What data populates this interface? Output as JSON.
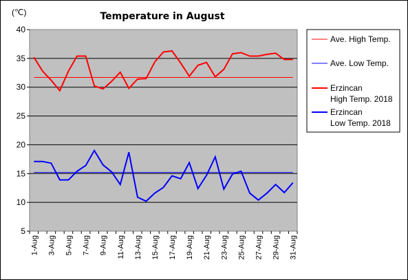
{
  "chart_data": {
    "type": "line",
    "title": "Temperature in August",
    "unit_label": "(℃)",
    "ylim": [
      5,
      40
    ],
    "y_ticks": [
      "5",
      "10",
      "15",
      "20",
      "25",
      "30",
      "35",
      "40"
    ],
    "y_tick_values": [
      5,
      10,
      15,
      20,
      25,
      30,
      35,
      40
    ],
    "grid": true,
    "legend_placement": "right",
    "x": [
      "1-Aug",
      "2-Aug",
      "3-Aug",
      "4-Aug",
      "5-Aug",
      "6-Aug",
      "7-Aug",
      "8-Aug",
      "9-Aug",
      "10-Aug",
      "11-Aug",
      "12-Aug",
      "13-Aug",
      "14-Aug",
      "15-Aug",
      "16-Aug",
      "17-Aug",
      "18-Aug",
      "19-Aug",
      "20-Aug",
      "21-Aug",
      "22-Aug",
      "23-Aug",
      "24-Aug",
      "25-Aug",
      "26-Aug",
      "27-Aug",
      "28-Aug",
      "29-Aug",
      "30-Aug",
      "31-Aug"
    ],
    "x_tick_labels": [
      "1-Aug",
      "3-Aug",
      "5-Aug",
      "7-Aug",
      "9-Aug",
      "11-Aug",
      "13-Aug",
      "15-Aug",
      "17-Aug",
      "19-Aug",
      "21-Aug",
      "23-Aug",
      "25-Aug",
      "27-Aug",
      "29-Aug",
      "31-Aug"
    ],
    "series": [
      {
        "name": "Ave. High Temp.",
        "color": "#ff0000",
        "width": 1,
        "values": [
          31.7,
          31.7,
          31.7,
          31.7,
          31.7,
          31.7,
          31.7,
          31.7,
          31.7,
          31.7,
          31.7,
          31.7,
          31.7,
          31.7,
          31.7,
          31.7,
          31.7,
          31.7,
          31.7,
          31.7,
          31.7,
          31.7,
          31.7,
          31.7,
          31.7,
          31.7,
          31.7,
          31.7,
          31.7,
          31.7,
          31.7
        ]
      },
      {
        "name": "Ave. Low Temp.",
        "color": "#0000ff",
        "width": 1,
        "values": [
          15.2,
          15.2,
          15.2,
          15.2,
          15.2,
          15.2,
          15.2,
          15.2,
          15.2,
          15.2,
          15.2,
          15.2,
          15.2,
          15.2,
          15.2,
          15.2,
          15.2,
          15.2,
          15.2,
          15.2,
          15.2,
          15.2,
          15.2,
          15.2,
          15.2,
          15.2,
          15.2,
          15.2,
          15.2,
          15.2,
          15.2
        ]
      },
      {
        "name": "Erzincan High Temp. 2018",
        "legend_lines": [
          "Erzincan",
          "High Temp. 2018"
        ],
        "color": "#ff0000",
        "width": 2,
        "values": [
          35.2,
          32.8,
          31.2,
          29.4,
          32.8,
          35.4,
          35.4,
          30.2,
          29.7,
          31.0,
          32.6,
          29.8,
          31.4,
          31.5,
          34.4,
          36.1,
          36.3,
          34.2,
          31.9,
          33.8,
          34.3,
          31.8,
          33.1,
          35.8,
          36.0,
          35.4,
          35.4,
          35.7,
          35.9,
          34.8,
          34.8
        ]
      },
      {
        "name": "Erzincan Low Temp. 2018",
        "legend_lines": [
          "Erzincan",
          "Low Temp. 2018"
        ],
        "color": "#0000ff",
        "width": 2,
        "values": [
          17.1,
          17.1,
          16.8,
          13.9,
          13.9,
          15.4,
          16.4,
          19.0,
          16.5,
          15.3,
          13.1,
          18.7,
          10.9,
          10.2,
          11.6,
          12.6,
          14.6,
          14.1,
          16.9,
          12.4,
          14.7,
          17.9,
          12.3,
          14.9,
          15.4,
          11.6,
          10.4,
          11.6,
          13.1,
          11.7,
          13.4
        ]
      }
    ]
  }
}
